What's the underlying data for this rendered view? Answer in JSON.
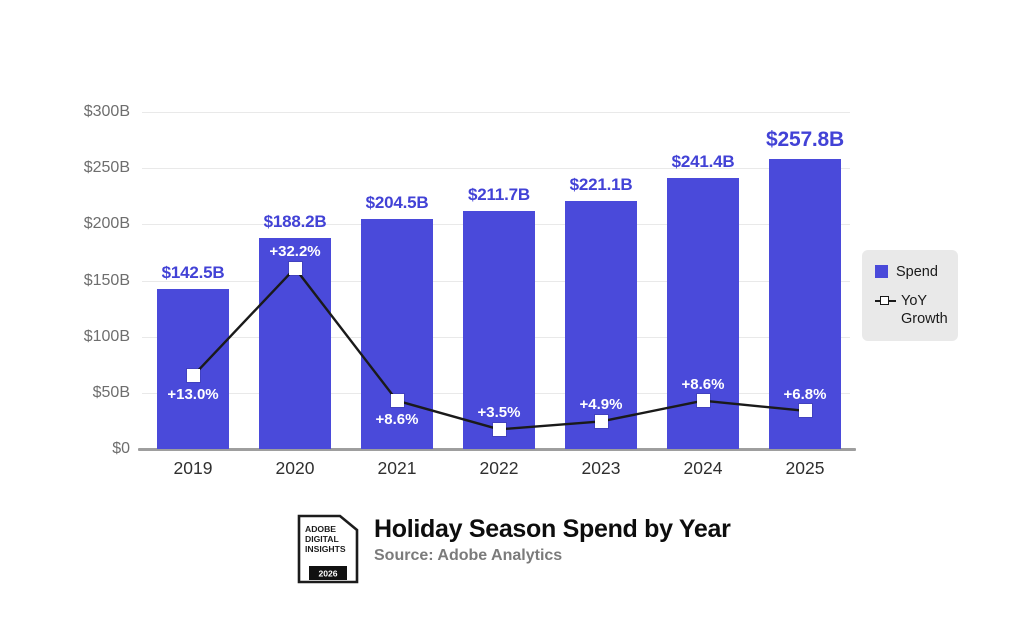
{
  "footer": {
    "title": "Holiday Season Spend by Year",
    "source": "Source: Adobe Analytics",
    "badge": {
      "line1": "ADOBE",
      "line2": "DIGITAL",
      "line3": "INSIGHTS",
      "year": "2026"
    }
  },
  "legend": {
    "spend_label": "Spend",
    "yoy_label": "YoY Growth"
  },
  "colors": {
    "bar": "#4A4ADA",
    "bar_label": "#4242D6",
    "line": "#1a1a1a",
    "marker_fill": "#ffffff",
    "grid": "#e9e9e9",
    "axis_baseline": "#9e9e9e",
    "y_tick_text": "#6e6e6e",
    "x_tick_text": "#2f2f2f",
    "yoy_label_text": "#ffffff",
    "legend_bg": "#e9e9e9"
  },
  "chart_data": {
    "type": "bar",
    "subtype": "bar-with-line-overlay",
    "title": "Holiday Season Spend by Year",
    "source": "Source: Adobe Analytics",
    "categories": [
      "2019",
      "2020",
      "2021",
      "2022",
      "2023",
      "2024",
      "2025"
    ],
    "series": [
      {
        "name": "Spend",
        "type": "bar",
        "unit": "USD billions",
        "values": [
          142.5,
          188.2,
          204.5,
          211.7,
          221.1,
          241.4,
          257.8
        ],
        "labels": [
          "$142.5B",
          "$188.2B",
          "$204.5B",
          "$211.7B",
          "$221.1B",
          "$241.4B",
          "$257.8B"
        ]
      },
      {
        "name": "YoY Growth",
        "type": "line",
        "unit": "percent",
        "values": [
          13.0,
          32.2,
          8.6,
          3.5,
          4.9,
          8.6,
          6.8
        ],
        "labels": [
          "+13.0%",
          "+32.2%",
          "+8.6%",
          "+3.5%",
          "+4.9%",
          "+8.6%",
          "+6.8%"
        ],
        "label_position": [
          "below",
          "above",
          "below",
          "above",
          "above",
          "above",
          "above"
        ]
      }
    ],
    "y_axis": {
      "ticks": [
        "$0",
        "$50B",
        "$100B",
        "$150B",
        "$200B",
        "$250B",
        "$300B"
      ],
      "tick_values": [
        0,
        50,
        100,
        150,
        200,
        250,
        300
      ],
      "ylim": [
        0,
        300
      ]
    },
    "growth_to_spend_axis_scale": 5,
    "grid": "horizontal",
    "legend_position": "right",
    "xlabel": "",
    "ylabel": ""
  }
}
